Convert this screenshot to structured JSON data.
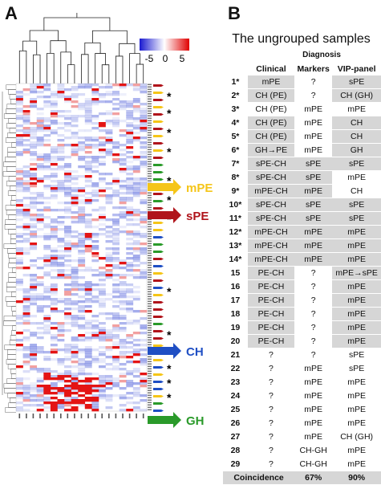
{
  "panel_a": {
    "letter": "A",
    "legend": {
      "ticks": [
        "-5",
        "0",
        "5"
      ]
    },
    "group_labels": [
      {
        "text": "mPE",
        "color": "#f5c518"
      },
      {
        "text": "sPE",
        "color": "#b0141b"
      },
      {
        "text": "CH",
        "color": "#1f4fc4"
      },
      {
        "text": "GH",
        "color": "#2a9a2a"
      }
    ],
    "colors": {
      "high": "#e01010",
      "low": "#2a3fcf",
      "neutral": "#ffffff"
    }
  },
  "panel_b": {
    "letter": "B",
    "title": "The ungrouped samples",
    "diagnosis_label": "Diagnosis",
    "columns": [
      "Clinical",
      "Markers",
      "VIP-panel"
    ],
    "rows": [
      {
        "id": "1*",
        "clinical": "mPE",
        "markers": "?",
        "vip": "sPE",
        "shade": [
          true,
          false,
          true
        ]
      },
      {
        "id": "2*",
        "clinical": "CH (PE)",
        "markers": "?",
        "vip": "CH (GH)",
        "shade": [
          true,
          false,
          true
        ]
      },
      {
        "id": "3*",
        "clinical": "CH (PE)",
        "markers": "mPE",
        "vip": "mPE",
        "shade": [
          false,
          false,
          false
        ]
      },
      {
        "id": "4*",
        "clinical": "CH (PE)",
        "markers": "mPE",
        "vip": "CH",
        "shade": [
          true,
          false,
          true
        ]
      },
      {
        "id": "5*",
        "clinical": "CH (PE)",
        "markers": "mPE",
        "vip": "CH",
        "shade": [
          true,
          false,
          true
        ]
      },
      {
        "id": "6*",
        "clinical": "GH→PE",
        "markers": "mPE",
        "vip": "GH",
        "shade": [
          true,
          false,
          true
        ]
      },
      {
        "id": "7*",
        "clinical": "sPE-CH",
        "markers": "sPE",
        "vip": "sPE",
        "shade": [
          true,
          true,
          true
        ]
      },
      {
        "id": "8*",
        "clinical": "sPE-CH",
        "markers": "sPE",
        "vip": "mPE",
        "shade": [
          true,
          true,
          false
        ]
      },
      {
        "id": "9*",
        "clinical": "mPE-CH",
        "markers": "mPE",
        "vip": "CH",
        "shade": [
          true,
          true,
          false
        ]
      },
      {
        "id": "10*",
        "clinical": "sPE-CH",
        "markers": "sPE",
        "vip": "sPE",
        "shade": [
          true,
          true,
          true
        ]
      },
      {
        "id": "11*",
        "clinical": "sPE-CH",
        "markers": "sPE",
        "vip": "sPE",
        "shade": [
          true,
          true,
          true
        ]
      },
      {
        "id": "12*",
        "clinical": "mPE-CH",
        "markers": "mPE",
        "vip": "mPE",
        "shade": [
          true,
          true,
          true
        ]
      },
      {
        "id": "13*",
        "clinical": "mPE-CH",
        "markers": "mPE",
        "vip": "mPE",
        "shade": [
          true,
          true,
          true
        ]
      },
      {
        "id": "14*",
        "clinical": "mPE-CH",
        "markers": "mPE",
        "vip": "mPE",
        "shade": [
          true,
          true,
          true
        ]
      },
      {
        "id": "15",
        "clinical": "PE-CH",
        "markers": "?",
        "vip": "mPE→sPE",
        "shade": [
          true,
          false,
          true
        ]
      },
      {
        "id": "16",
        "clinical": "PE-CH",
        "markers": "?",
        "vip": "mPE",
        "shade": [
          true,
          false,
          true
        ]
      },
      {
        "id": "17",
        "clinical": "PE-CH",
        "markers": "?",
        "vip": "mPE",
        "shade": [
          true,
          false,
          true
        ]
      },
      {
        "id": "18",
        "clinical": "PE-CH",
        "markers": "?",
        "vip": "mPE",
        "shade": [
          true,
          false,
          true
        ]
      },
      {
        "id": "19",
        "clinical": "PE-CH",
        "markers": "?",
        "vip": "mPE",
        "shade": [
          true,
          false,
          true
        ]
      },
      {
        "id": "20",
        "clinical": "PE-CH",
        "markers": "?",
        "vip": "mPE",
        "shade": [
          true,
          false,
          true
        ]
      },
      {
        "id": "21",
        "clinical": "?",
        "markers": "?",
        "vip": "sPE",
        "shade": [
          false,
          false,
          false
        ]
      },
      {
        "id": "22",
        "clinical": "?",
        "markers": "mPE",
        "vip": "sPE",
        "shade": [
          false,
          false,
          false
        ]
      },
      {
        "id": "23",
        "clinical": "?",
        "markers": "mPE",
        "vip": "mPE",
        "shade": [
          false,
          false,
          false
        ]
      },
      {
        "id": "24",
        "clinical": "?",
        "markers": "mPE",
        "vip": "mPE",
        "shade": [
          false,
          false,
          false
        ]
      },
      {
        "id": "25",
        "clinical": "?",
        "markers": "mPE",
        "vip": "mPE",
        "shade": [
          false,
          false,
          false
        ]
      },
      {
        "id": "26",
        "clinical": "?",
        "markers": "mPE",
        "vip": "mPE",
        "shade": [
          false,
          false,
          false
        ]
      },
      {
        "id": "27",
        "clinical": "?",
        "markers": "mPE",
        "vip": "CH (GH)",
        "shade": [
          false,
          false,
          false
        ]
      },
      {
        "id": "28",
        "clinical": "?",
        "markers": "CH-GH",
        "vip": "mPE",
        "shade": [
          false,
          false,
          false
        ]
      },
      {
        "id": "29",
        "clinical": "?",
        "markers": "CH-GH",
        "vip": "mPE",
        "shade": [
          false,
          false,
          false
        ]
      }
    ],
    "coincidence": {
      "label": "Coincidence",
      "markers": "67%",
      "vip": "90%"
    }
  }
}
